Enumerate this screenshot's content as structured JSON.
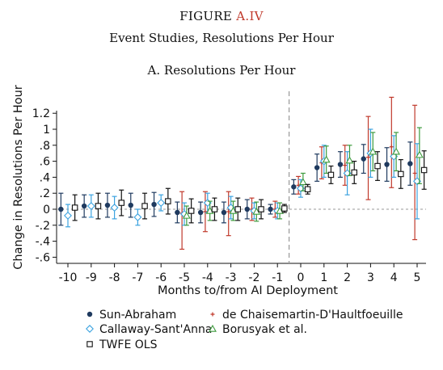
{
  "header": {
    "figure_prefix": "FIGURE ",
    "figure_id": "A.IV",
    "figure_title": "Event Studies, Resolutions Per Hour",
    "panel_title": "A. Resolutions Per Hour",
    "accent_color": "#c0392b"
  },
  "chart_data": {
    "type": "scatter",
    "title": "A. Resolutions Per Hour",
    "xlabel": "Months to/from AI Deployment",
    "ylabel": "Change in Resolutions Per Hour",
    "xlim": [
      -10.5,
      5.5
    ],
    "ylim": [
      -0.65,
      1.25
    ],
    "x_ticks": [
      -10,
      -9,
      -8,
      -7,
      -6,
      -5,
      -4,
      -3,
      -2,
      -1,
      0,
      1,
      2,
      3,
      4,
      5
    ],
    "x_tick_labels": [
      "-10",
      "-9",
      "-8",
      "-7",
      "-6",
      "-5",
      "-4",
      "-3",
      "-2",
      "-1",
      "0",
      "1",
      "2",
      "3",
      "4",
      "5"
    ],
    "y_ticks": [
      -0.6,
      -0.4,
      -0.2,
      0,
      0.2,
      0.4,
      0.6,
      0.8,
      1,
      1.2
    ],
    "y_tick_labels": [
      "-.6",
      "-.4",
      "-.2",
      "0",
      ".2",
      ".4",
      ".6",
      ".8",
      "1",
      "1.2"
    ],
    "zero_line": true,
    "deployment_line_x": -0.5,
    "legend_position": "bottom",
    "series": [
      {
        "name": "Sun-Abraham",
        "color": "#1f3a5f",
        "marker": "circle",
        "offset": -0.3,
        "x": [
          -10,
          -9,
          -8,
          -7,
          -6,
          -5,
          -4,
          -3,
          -2,
          -1,
          0,
          1,
          2,
          3,
          4,
          5
        ],
        "y": [
          0.0,
          0.04,
          0.05,
          0.05,
          0.06,
          -0.04,
          -0.04,
          -0.04,
          0.0,
          0.0,
          0.28,
          0.52,
          0.56,
          0.63,
          0.56,
          0.57
        ],
        "lo": [
          -0.2,
          -0.1,
          -0.1,
          -0.1,
          -0.09,
          -0.17,
          -0.17,
          -0.17,
          -0.12,
          -0.06,
          0.19,
          0.35,
          0.4,
          0.45,
          0.35,
          0.3
        ],
        "hi": [
          0.2,
          0.18,
          0.2,
          0.2,
          0.21,
          0.09,
          0.09,
          0.09,
          0.12,
          0.06,
          0.37,
          0.69,
          0.72,
          0.81,
          0.77,
          0.84
        ]
      },
      {
        "name": "de Chaisemartin-D'Haultfoeuille",
        "color": "#c0392b",
        "marker": "plus",
        "offset": -0.1,
        "x": [
          -5,
          -4,
          -3,
          -2,
          -1,
          0,
          1,
          2,
          3,
          4,
          5
        ],
        "y": [
          -0.05,
          -0.03,
          -0.03,
          0.0,
          0.0,
          0.3,
          0.58,
          0.55,
          0.65,
          0.78,
          0.45
        ],
        "lo": [
          -0.5,
          -0.28,
          -0.33,
          -0.14,
          -0.1,
          0.19,
          0.38,
          0.3,
          0.12,
          0.27,
          -0.38
        ],
        "hi": [
          0.22,
          0.22,
          0.22,
          0.14,
          0.1,
          0.41,
          0.78,
          0.8,
          1.16,
          1.4,
          1.3
        ]
      },
      {
        "name": "Callaway-Sant'Anna",
        "color": "#3ca3e0",
        "marker": "diamond",
        "offset": 0.0,
        "x": [
          -10,
          -9,
          -8,
          -7,
          -6,
          -5,
          -4,
          -3,
          -2,
          -1,
          0,
          1,
          2,
          3,
          4,
          5
        ],
        "y": [
          -0.08,
          0.04,
          0.02,
          -0.1,
          0.08,
          -0.06,
          0.08,
          0.02,
          -0.02,
          -0.02,
          0.26,
          0.6,
          0.45,
          0.7,
          0.66,
          0.35
        ],
        "lo": [
          -0.22,
          -0.1,
          -0.12,
          -0.2,
          -0.02,
          -0.2,
          -0.04,
          -0.12,
          -0.12,
          -0.12,
          0.15,
          0.4,
          0.18,
          0.4,
          0.4,
          -0.12
        ],
        "hi": [
          0.06,
          0.18,
          0.16,
          0.0,
          0.18,
          0.08,
          0.2,
          0.16,
          0.08,
          0.08,
          0.37,
          0.8,
          0.72,
          1.0,
          0.92,
          0.82
        ]
      },
      {
        "name": "Borusyak et al.",
        "color": "#3e9b3e",
        "marker": "triangle",
        "offset": 0.1,
        "x": [
          -5,
          -4,
          -3,
          -2,
          -1,
          0,
          1,
          2,
          3,
          4,
          5
        ],
        "y": [
          -0.08,
          -0.02,
          -0.02,
          -0.03,
          -0.02,
          0.34,
          0.62,
          0.61,
          0.72,
          0.72,
          0.68
        ],
        "lo": [
          -0.2,
          -0.14,
          -0.14,
          -0.15,
          -0.12,
          0.23,
          0.45,
          0.42,
          0.48,
          0.48,
          0.32
        ],
        "hi": [
          0.04,
          0.1,
          0.1,
          0.09,
          0.08,
          0.45,
          0.79,
          0.8,
          0.96,
          0.96,
          1.02
        ]
      },
      {
        "name": "TWFE OLS",
        "color": "#111111",
        "marker": "square",
        "offset": 0.3,
        "x": [
          -10,
          -9,
          -8,
          -7,
          -6,
          -5,
          -4,
          -3,
          -2,
          -1,
          0,
          1,
          2,
          3,
          4,
          5
        ],
        "y": [
          0.02,
          0.04,
          0.08,
          0.04,
          0.1,
          -0.02,
          0.0,
          0.0,
          0.0,
          0.01,
          0.25,
          0.43,
          0.46,
          0.54,
          0.44,
          0.49
        ],
        "lo": [
          -0.14,
          -0.12,
          -0.08,
          -0.12,
          -0.06,
          -0.17,
          -0.14,
          -0.14,
          -0.12,
          -0.04,
          0.19,
          0.32,
          0.32,
          0.36,
          0.26,
          0.25
        ],
        "hi": [
          0.18,
          0.2,
          0.24,
          0.2,
          0.26,
          0.13,
          0.14,
          0.14,
          0.12,
          0.06,
          0.31,
          0.54,
          0.6,
          0.72,
          0.62,
          0.73
        ]
      }
    ]
  }
}
